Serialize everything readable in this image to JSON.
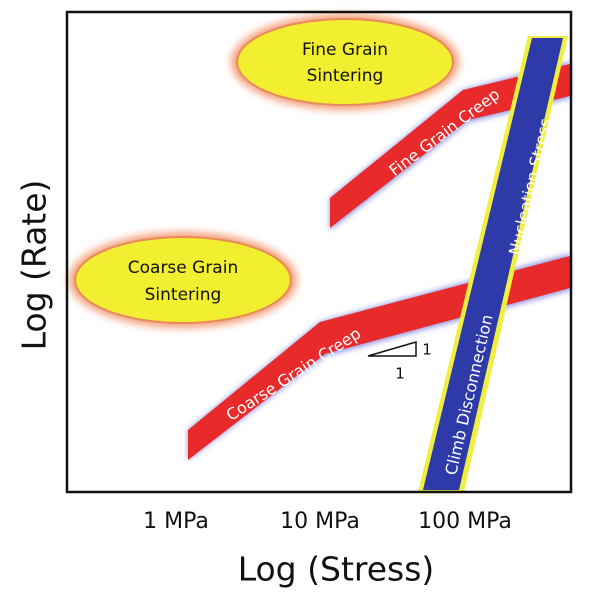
{
  "axes": {
    "x_label": "Log (Stress)",
    "y_label": "Log (Rate)",
    "x_ticks": [
      "1 MPa",
      "10 MPa",
      "100 MPa"
    ]
  },
  "regions": [
    {
      "lines": [
        "Fine Grain",
        "Sintering"
      ]
    },
    {
      "lines": [
        "Coarse Grain",
        "Sintering"
      ]
    }
  ],
  "bands": [
    {
      "label": "Fine Grain Creep"
    },
    {
      "label": "Coarse Grain Creep"
    },
    {
      "lines": [
        "Climb Disconnection",
        "Nucleation Stress"
      ]
    }
  ],
  "slope_triangle": {
    "rise": "1",
    "run": "1"
  }
}
